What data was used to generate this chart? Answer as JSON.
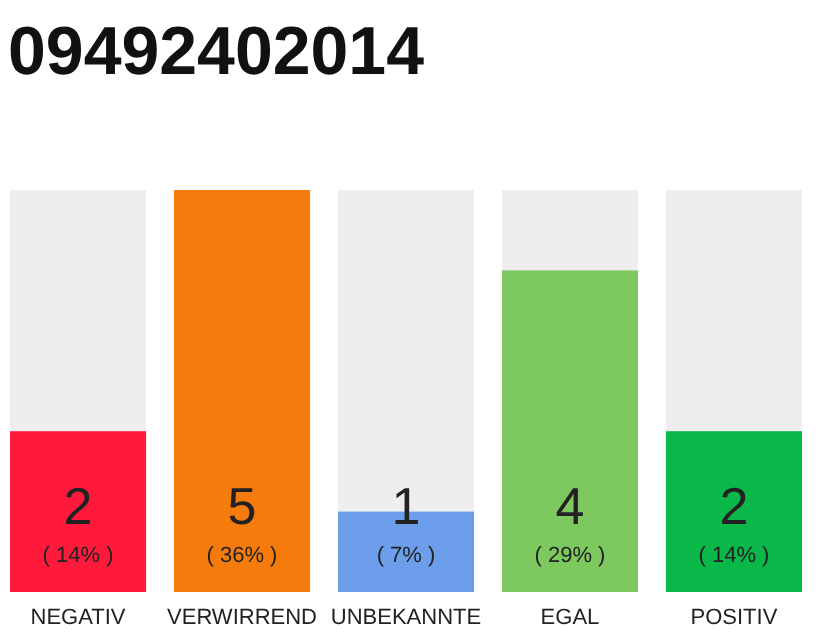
{
  "chart_data": {
    "type": "bar",
    "title": "09492402014",
    "categories": [
      "NEGATIV",
      "VERWIRREND",
      "UNBEKANNTE",
      "EGAL",
      "POSITIV"
    ],
    "values": [
      2,
      5,
      1,
      4,
      2
    ],
    "colors": [
      "#ff1a3c",
      "#f57c0c",
      "#6d9eeb",
      "#7ec95f",
      "#0ab84a"
    ],
    "value_labels": [
      "2\n( 14% )",
      "5\n( 36% )",
      "1\n( 7% )",
      "4\n( 29% )",
      "2\n( 14% )"
    ],
    "ylim": [
      0,
      5
    ],
    "tick_labels": "x",
    "grid": false
  }
}
